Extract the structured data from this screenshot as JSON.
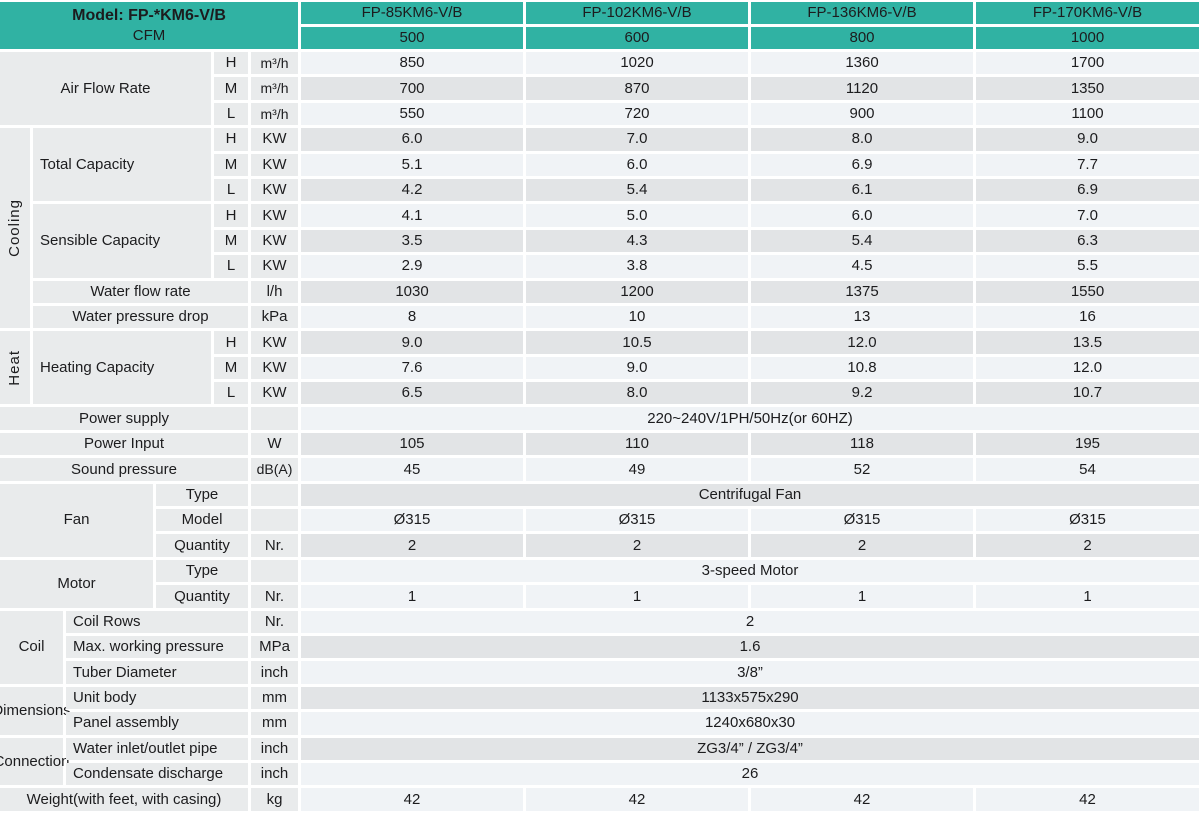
{
  "header": {
    "model_label": "Model: FP-*KM6-V/B",
    "cfm_label": "CFM",
    "models": [
      "FP-85KM6-V/B",
      "FP-102KM6-V/B",
      "FP-136KM6-V/B",
      "FP-170KM6-V/B"
    ],
    "cfm_values": [
      "500",
      "600",
      "800",
      "1000"
    ]
  },
  "colors": {
    "header_teal": "#30b2a3",
    "row_light": "#f0f3f6",
    "row_dark": "#e2e4e6",
    "label_bg": "#e9ebec",
    "text": "#1c1c1e"
  },
  "sections": {
    "air_flow": {
      "label": "Air Flow Rate",
      "rows": [
        {
          "speed": "H",
          "unit": "m³/h",
          "values": [
            "850",
            "1020",
            "1360",
            "1700"
          ]
        },
        {
          "speed": "M",
          "unit": "m³/h",
          "values": [
            "700",
            "870",
            "1120",
            "1350"
          ]
        },
        {
          "speed": "L",
          "unit": "m³/h",
          "values": [
            "550",
            "720",
            "900",
            "1100"
          ]
        }
      ]
    },
    "cooling": {
      "group": "Cooling",
      "total_capacity": {
        "label": "Total Capacity",
        "rows": [
          {
            "speed": "H",
            "unit": "KW",
            "values": [
              "6.0",
              "7.0",
              "8.0",
              "9.0"
            ]
          },
          {
            "speed": "M",
            "unit": "KW",
            "values": [
              "5.1",
              "6.0",
              "6.9",
              "7.7"
            ]
          },
          {
            "speed": "L",
            "unit": "KW",
            "values": [
              "4.2",
              "5.4",
              "6.1",
              "6.9"
            ]
          }
        ]
      },
      "sensible_capacity": {
        "label": "Sensible Capacity",
        "rows": [
          {
            "speed": "H",
            "unit": "KW",
            "values": [
              "4.1",
              "5.0",
              "6.0",
              "7.0"
            ]
          },
          {
            "speed": "M",
            "unit": "KW",
            "values": [
              "3.5",
              "4.3",
              "5.4",
              "6.3"
            ]
          },
          {
            "speed": "L",
            "unit": "KW",
            "values": [
              "2.9",
              "3.8",
              "4.5",
              "5.5"
            ]
          }
        ]
      },
      "water_flow": {
        "label": "Water flow rate",
        "unit": "l/h",
        "values": [
          "1030",
          "1200",
          "1375",
          "1550"
        ]
      },
      "water_pressure": {
        "label": "Water pressure drop",
        "unit": "kPa",
        "values": [
          "8",
          "10",
          "13",
          "16"
        ]
      }
    },
    "heat": {
      "group": "Heat",
      "heating_capacity": {
        "label": "Heating Capacity",
        "rows": [
          {
            "speed": "H",
            "unit": "KW",
            "values": [
              "9.0",
              "10.5",
              "12.0",
              "13.5"
            ]
          },
          {
            "speed": "M",
            "unit": "KW",
            "values": [
              "7.6",
              "9.0",
              "10.8",
              "12.0"
            ]
          },
          {
            "speed": "L",
            "unit": "KW",
            "values": [
              "6.5",
              "8.0",
              "9.2",
              "10.7"
            ]
          }
        ]
      }
    },
    "power_supply": {
      "label": "Power supply",
      "value": "220~240V/1PH/50Hz(or 60HZ)"
    },
    "power_input": {
      "label": "Power Input",
      "unit": "W",
      "values": [
        "105",
        "110",
        "118",
        "195"
      ]
    },
    "sound_pressure": {
      "label": "Sound pressure",
      "unit": "dB(A)",
      "values": [
        "45",
        "49",
        "52",
        "54"
      ]
    },
    "fan": {
      "group": "Fan",
      "type": {
        "label": "Type",
        "value": "Centrifugal Fan"
      },
      "model": {
        "label": "Model",
        "values": [
          "Ø315",
          "Ø315",
          "Ø315",
          "Ø315"
        ]
      },
      "quantity": {
        "label": "Quantity",
        "unit": "Nr.",
        "values": [
          "2",
          "2",
          "2",
          "2"
        ]
      }
    },
    "motor": {
      "group": "Motor",
      "type": {
        "label": "Type",
        "value": "3-speed Motor"
      },
      "quantity": {
        "label": "Quantity",
        "unit": "Nr.",
        "values": [
          "1",
          "1",
          "1",
          "1"
        ]
      }
    },
    "coil": {
      "group": "Coil",
      "rows": [
        {
          "label": "Coil Rows",
          "unit": "Nr.",
          "value": "2"
        },
        {
          "label": "Max. working pressure",
          "unit": "MPa",
          "value": "1.6"
        },
        {
          "label": "Tuber Diameter",
          "unit": "inch",
          "value": "3/8”"
        }
      ]
    },
    "dimensions": {
      "group": "Dimensions",
      "rows": [
        {
          "label": "Unit body",
          "unit": "mm",
          "value": "1133x575x290"
        },
        {
          "label": "Panel assembly",
          "unit": "mm",
          "value": "1240x680x30"
        }
      ]
    },
    "connection": {
      "group": "Connection",
      "rows": [
        {
          "label": "Water inlet/outlet pipe",
          "unit": "inch",
          "value": "ZG3/4” / ZG3/4”"
        },
        {
          "label": "Condensate discharge",
          "unit": "inch",
          "value": "26"
        }
      ]
    },
    "weight": {
      "label": "Weight(with feet, with casing)",
      "unit": "kg",
      "values": [
        "42",
        "42",
        "42",
        "42"
      ]
    }
  }
}
